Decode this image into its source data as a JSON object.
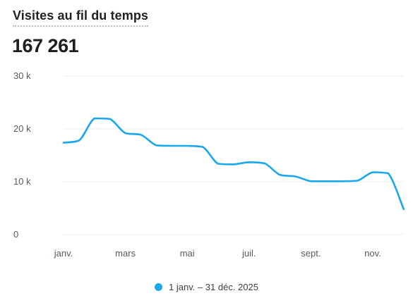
{
  "card": {
    "title": "Visites au fil du temps",
    "total": "167 261"
  },
  "chart_data": {
    "type": "line",
    "color": "#1aa7ec",
    "y_ticks": [
      {
        "value": 30000,
        "label": "30 k"
      },
      {
        "value": 20000,
        "label": "20 k"
      },
      {
        "value": 10000,
        "label": "10 k"
      },
      {
        "value": 0,
        "label": "0"
      }
    ],
    "x_ticks": [
      {
        "month": 0,
        "label": "janv."
      },
      {
        "month": 2,
        "label": "mars"
      },
      {
        "month": 4,
        "label": "mai"
      },
      {
        "month": 6,
        "label": "juil."
      },
      {
        "month": 8,
        "label": "sept."
      },
      {
        "month": 10,
        "label": "nov."
      }
    ],
    "ylim": [
      0,
      30000
    ],
    "xlim": [
      0,
      11
    ],
    "series": [
      {
        "name": "1 janv. – 31 déc. 2025",
        "x": [
          0,
          0.5,
          1,
          1.5,
          2,
          2.5,
          3,
          3.5,
          4,
          4.5,
          5,
          5.5,
          6,
          6.5,
          7,
          7.5,
          8,
          8.5,
          9,
          9.5,
          10,
          10.5,
          11
        ],
        "y": [
          17400,
          17800,
          22000,
          21900,
          19200,
          18900,
          16900,
          16800,
          16800,
          16600,
          13400,
          13300,
          13700,
          13500,
          11300,
          11000,
          10100,
          10100,
          10100,
          10200,
          11800,
          11600,
          4800
        ]
      }
    ]
  },
  "legend": {
    "label": "1 janv. – 31 déc. 2025"
  }
}
